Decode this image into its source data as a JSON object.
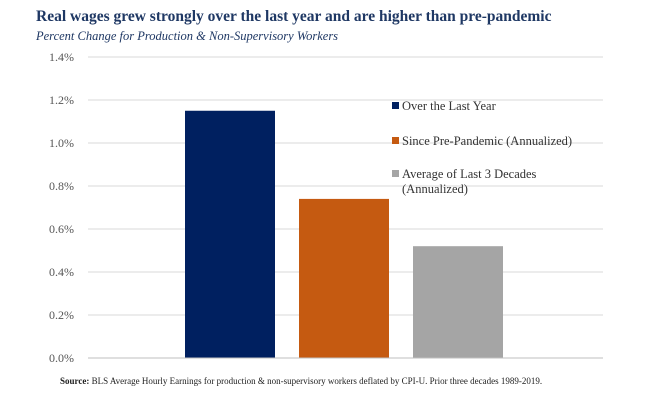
{
  "chart_data": {
    "type": "bar",
    "title": "Real wages grew strongly over the last year and are higher than pre-pandemic",
    "subtitle": "Percent Change for Production & Non-Supervisory Workers",
    "xlabel": "",
    "ylabel": "",
    "ylim": [
      0,
      1.4
    ],
    "yticks": [
      "0.0%",
      "0.2%",
      "0.4%",
      "0.6%",
      "0.8%",
      "1.0%",
      "1.2%",
      "1.4%"
    ],
    "grid": true,
    "legend_position": "right",
    "series": [
      {
        "name": "Over the Last Year",
        "value": 1.15,
        "color": "#002060"
      },
      {
        "name": "Since Pre-Pandemic (Annualized)",
        "value": 0.74,
        "color": "#c55a11"
      },
      {
        "name": "Average of Last 3 Decades (Annualized)",
        "value": 0.52,
        "color": "#a5a5a5",
        "legend_lines": [
          "Average of Last 3 Decades",
          "(Annualized)"
        ]
      }
    ]
  },
  "source": {
    "label": "Source:",
    "text": " BLS Average Hourly Earnings  for production & non-supervisory workers deflated by CPI-U. Prior three decades 1989-2019."
  }
}
